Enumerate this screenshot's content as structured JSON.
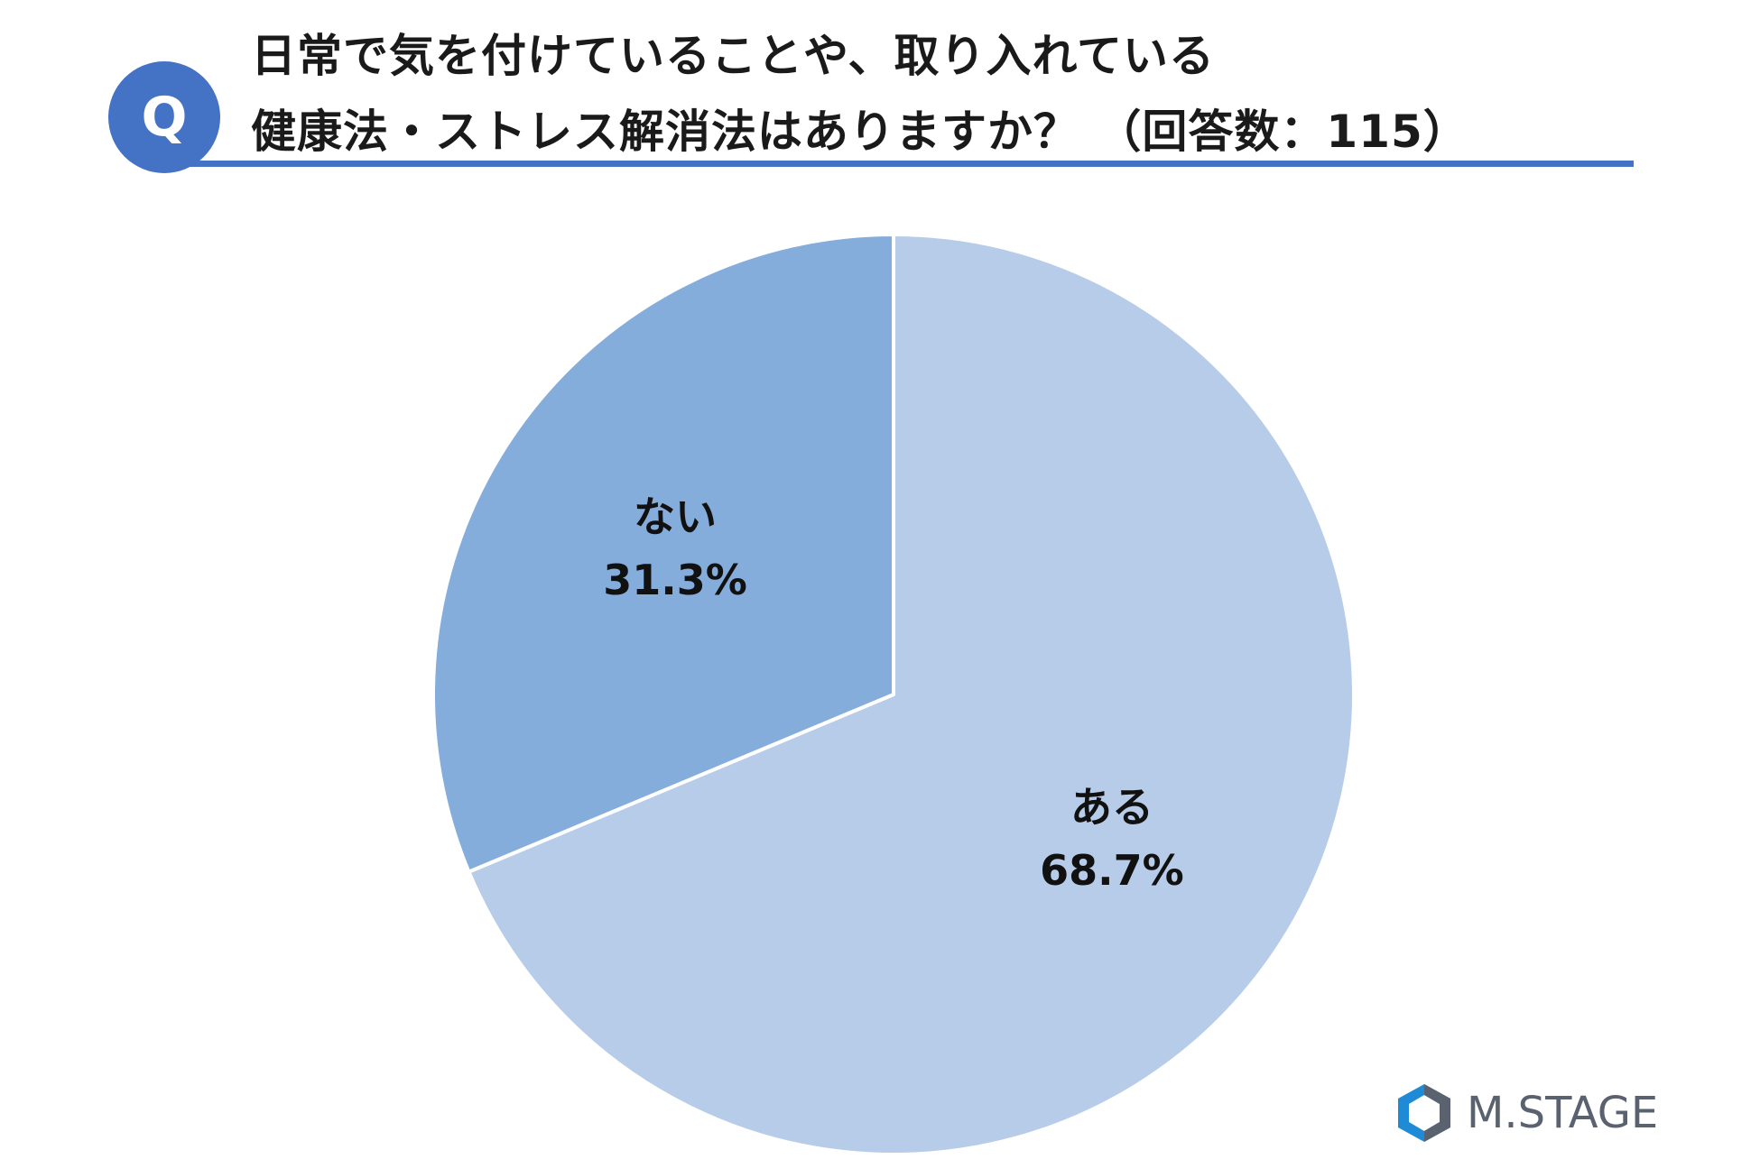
{
  "badge": {
    "letter": "Q"
  },
  "title": {
    "line1": "日常で気を付けていることや、取り入れている",
    "line2": "健康法・ストレス解消法はありますか？ （回答数：115）"
  },
  "chart_data": {
    "type": "pie",
    "title": "日常で気を付けていることや、取り入れている健康法・ストレス解消法はありますか？ （回答数：115）",
    "start": "12 o'clock",
    "direction": "clockwise",
    "slices": [
      {
        "label": "ある",
        "value": 68.7,
        "value_label": "68.7%",
        "color": "#b7cce8"
      },
      {
        "label": "ない",
        "value": 31.3,
        "value_label": "31.3%",
        "color": "#85addb"
      }
    ],
    "slice_border_color": "#ffffff",
    "legend": "none",
    "data_labels": "inside"
  },
  "logo": {
    "text": "M.STAGE",
    "colors": {
      "primary": "#1f8bd6",
      "dark": "#5a6270"
    }
  }
}
